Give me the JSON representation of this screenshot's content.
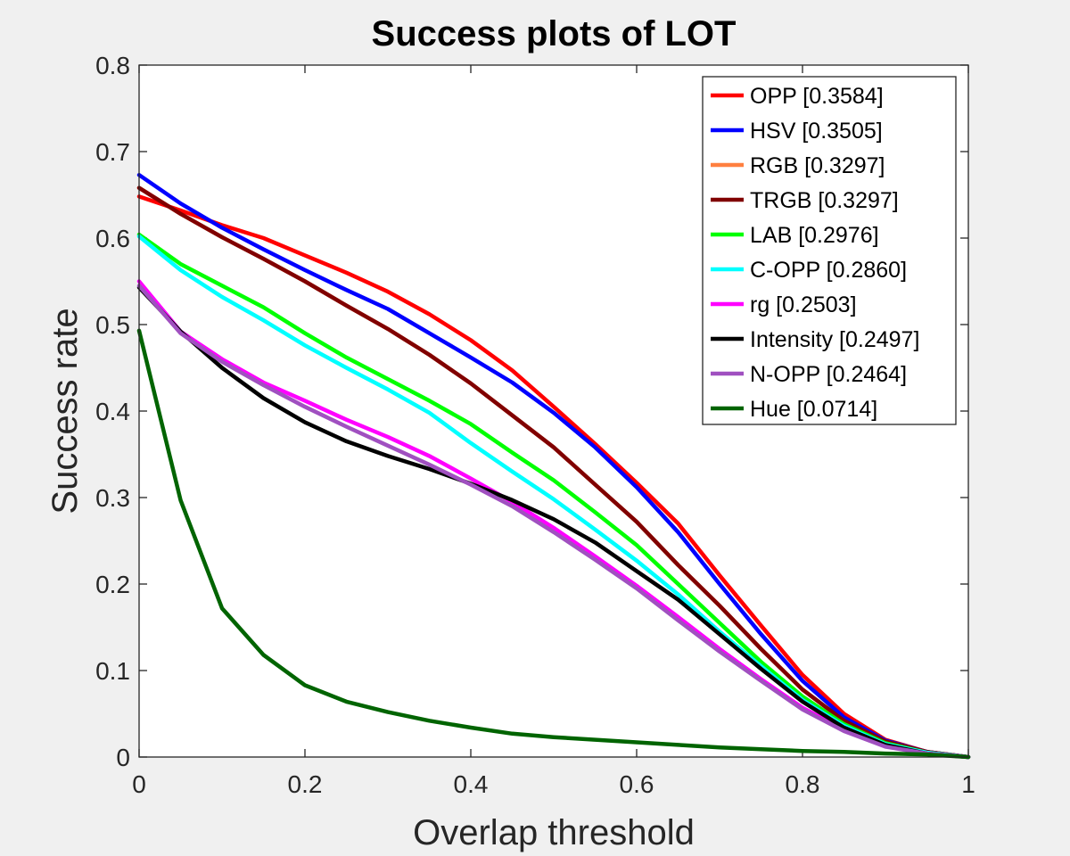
{
  "chart_data": {
    "type": "line",
    "title": "Success plots of LOT",
    "xlabel": "Overlap threshold",
    "ylabel": "Success rate",
    "xlim": [
      0,
      1
    ],
    "ylim": [
      0,
      0.8
    ],
    "xticks": [
      0,
      0.2,
      0.4,
      0.6,
      0.8,
      1
    ],
    "xtick_labels": [
      "0",
      "0.2",
      "0.4",
      "0.6",
      "0.8",
      "1"
    ],
    "yticks": [
      0,
      0.1,
      0.2,
      0.3,
      0.4,
      0.5,
      0.6,
      0.7,
      0.8
    ],
    "ytick_labels": [
      "0",
      "0.1",
      "0.2",
      "0.3",
      "0.4",
      "0.5",
      "0.6",
      "0.7",
      "0.8"
    ],
    "grid": false,
    "legend_position": "top-right",
    "x": [
      0,
      0.05,
      0.1,
      0.15,
      0.2,
      0.25,
      0.3,
      0.35,
      0.4,
      0.45,
      0.5,
      0.55,
      0.6,
      0.65,
      0.7,
      0.75,
      0.8,
      0.85,
      0.9,
      0.95,
      1.0
    ],
    "series": [
      {
        "name": "RGB [0.3297]",
        "color": "#ff8040",
        "draw_order": 0,
        "values": [
          0.658,
          0.628,
          0.601,
          0.576,
          0.55,
          0.522,
          0.495,
          0.465,
          0.432,
          0.395,
          0.358,
          0.315,
          0.272,
          0.222,
          0.175,
          0.125,
          0.078,
          0.042,
          0.018,
          0.006,
          0.0
        ]
      },
      {
        "name": "OPP [0.3584]",
        "color": "#ff0000",
        "draw_order": 1,
        "values": [
          0.648,
          0.632,
          0.615,
          0.6,
          0.58,
          0.56,
          0.538,
          0.512,
          0.482,
          0.447,
          0.405,
          0.362,
          0.317,
          0.27,
          0.21,
          0.152,
          0.095,
          0.05,
          0.02,
          0.006,
          0.0
        ]
      },
      {
        "name": "HSV [0.3505]",
        "color": "#0000ff",
        "draw_order": 2,
        "values": [
          0.673,
          0.64,
          0.612,
          0.587,
          0.563,
          0.54,
          0.518,
          0.49,
          0.462,
          0.433,
          0.398,
          0.358,
          0.312,
          0.26,
          0.2,
          0.142,
          0.088,
          0.046,
          0.019,
          0.006,
          0.0
        ]
      },
      {
        "name": "TRGB [0.3297]",
        "color": "#800000",
        "draw_order": 3,
        "values": [
          0.658,
          0.628,
          0.601,
          0.576,
          0.55,
          0.522,
          0.495,
          0.465,
          0.432,
          0.395,
          0.358,
          0.315,
          0.272,
          0.222,
          0.175,
          0.125,
          0.078,
          0.042,
          0.018,
          0.006,
          0.0
        ]
      },
      {
        "name": "LAB [0.2976]",
        "color": "#00ff00",
        "draw_order": 4,
        "values": [
          0.604,
          0.57,
          0.545,
          0.52,
          0.49,
          0.462,
          0.437,
          0.412,
          0.385,
          0.352,
          0.32,
          0.283,
          0.245,
          0.2,
          0.155,
          0.11,
          0.07,
          0.038,
          0.016,
          0.005,
          0.0
        ]
      },
      {
        "name": "C-OPP [0.2860]",
        "color": "#00ffff",
        "draw_order": 5,
        "values": [
          0.602,
          0.563,
          0.532,
          0.505,
          0.476,
          0.45,
          0.425,
          0.398,
          0.363,
          0.33,
          0.298,
          0.263,
          0.227,
          0.188,
          0.145,
          0.105,
          0.066,
          0.036,
          0.015,
          0.005,
          0.0
        ]
      },
      {
        "name": "rg [0.2503]",
        "color": "#ff00ff",
        "draw_order": 6,
        "values": [
          0.55,
          0.492,
          0.46,
          0.433,
          0.412,
          0.39,
          0.37,
          0.348,
          0.322,
          0.295,
          0.265,
          0.232,
          0.198,
          0.162,
          0.125,
          0.09,
          0.057,
          0.032,
          0.013,
          0.004,
          0.0
        ]
      },
      {
        "name": "Intensity [0.2497]",
        "color": "#000000",
        "draw_order": 7,
        "values": [
          0.543,
          0.492,
          0.45,
          0.415,
          0.387,
          0.365,
          0.348,
          0.333,
          0.316,
          0.297,
          0.275,
          0.248,
          0.215,
          0.182,
          0.142,
          0.102,
          0.064,
          0.034,
          0.014,
          0.004,
          0.0
        ]
      },
      {
        "name": "N-OPP [0.2464]",
        "color": "#a050c0",
        "draw_order": 8,
        "values": [
          0.545,
          0.49,
          0.457,
          0.43,
          0.405,
          0.382,
          0.36,
          0.338,
          0.315,
          0.29,
          0.26,
          0.228,
          0.195,
          0.158,
          0.122,
          0.088,
          0.055,
          0.03,
          0.012,
          0.004,
          0.0
        ]
      },
      {
        "name": "Hue [0.0714]",
        "color": "#006400",
        "draw_order": 9,
        "values": [
          0.493,
          0.297,
          0.172,
          0.118,
          0.083,
          0.064,
          0.052,
          0.042,
          0.034,
          0.027,
          0.023,
          0.02,
          0.017,
          0.014,
          0.011,
          0.009,
          0.007,
          0.006,
          0.004,
          0.003,
          0.0
        ]
      }
    ],
    "legend_order": [
      "OPP [0.3584]",
      "HSV [0.3505]",
      "RGB [0.3297]",
      "TRGB [0.3297]",
      "LAB [0.2976]",
      "C-OPP [0.2860]",
      "rg [0.2503]",
      "Intensity [0.2497]",
      "N-OPP [0.2464]",
      "Hue [0.0714]"
    ]
  }
}
